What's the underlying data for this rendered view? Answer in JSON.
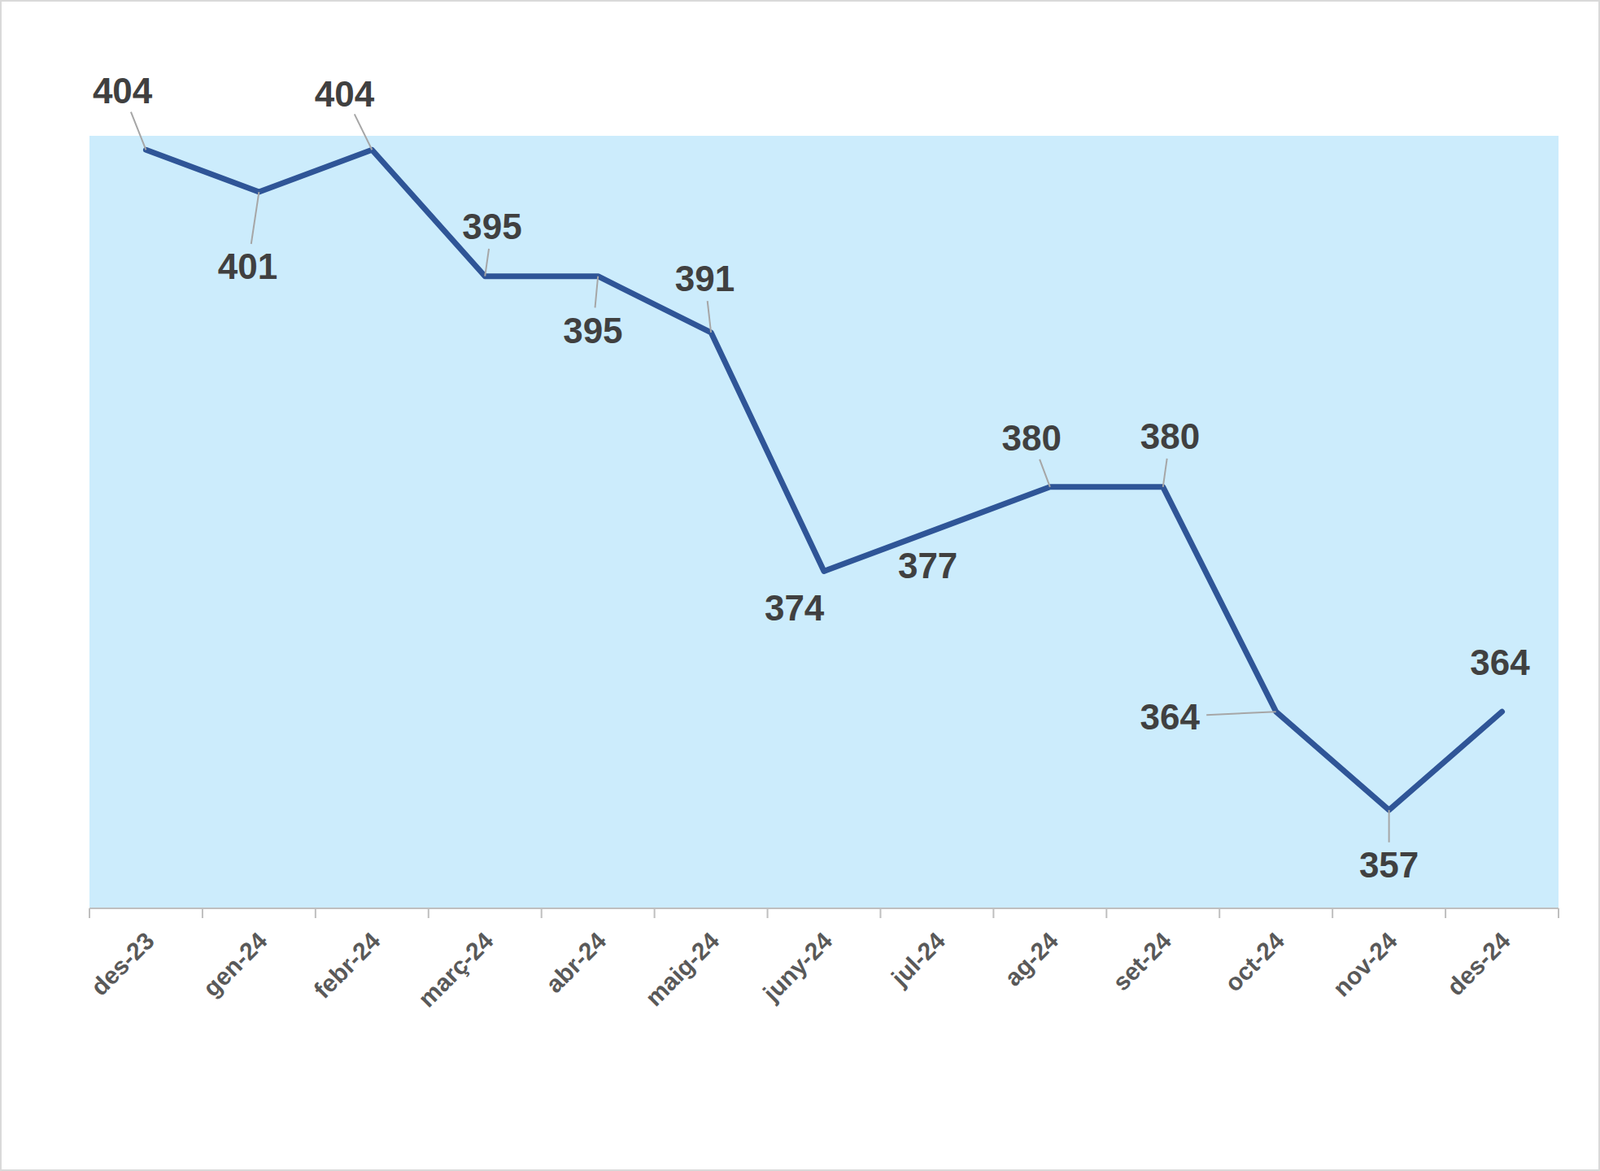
{
  "chart_data": {
    "type": "line",
    "categories": [
      "des-23",
      "gen-24",
      "febr-24",
      "març-24",
      "abr-24",
      "maig-24",
      "juny-24",
      "jul-24",
      "ag-24",
      "set-24",
      "oct-24",
      "nov-24",
      "des-24"
    ],
    "values": [
      404,
      401,
      404,
      395,
      395,
      391,
      374,
      377,
      380,
      380,
      364,
      357,
      364
    ],
    "color": "#2F5597",
    "ylim": [
      350,
      405
    ],
    "data_labels": true,
    "tick_labels": "x",
    "grid": false
  }
}
